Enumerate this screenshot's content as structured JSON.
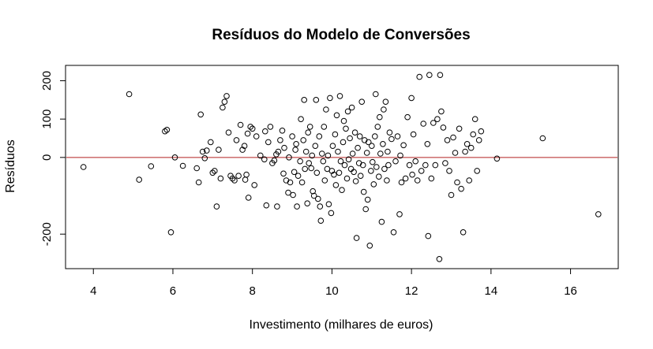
{
  "chart_data": {
    "type": "scatter",
    "title": "Resíduos do Modelo de Conversões",
    "xlabel": "Investimento (milhares de euros)",
    "ylabel": "Resíduos",
    "xlim": [
      3.3,
      17.2
    ],
    "ylim": [
      -290,
      240
    ],
    "xticks": [
      4,
      6,
      8,
      10,
      12,
      14,
      16
    ],
    "yticks": [
      -200,
      0,
      100,
      200
    ],
    "grid": false,
    "marker": "open-circle",
    "colors": {
      "points": "#000000",
      "reference_line": "#b22222"
    },
    "reference_line": {
      "orientation": "horizontal",
      "y": 0
    },
    "points": [
      [
        3.75,
        -25
      ],
      [
        4.9,
        165
      ],
      [
        5.15,
        -58
      ],
      [
        5.45,
        -23
      ],
      [
        5.8,
        68
      ],
      [
        5.85,
        72
      ],
      [
        5.95,
        -195
      ],
      [
        6.05,
        0
      ],
      [
        6.25,
        -22
      ],
      [
        6.6,
        -28
      ],
      [
        6.65,
        -65
      ],
      [
        6.7,
        112
      ],
      [
        6.75,
        15
      ],
      [
        6.8,
        -2
      ],
      [
        6.85,
        18
      ],
      [
        6.95,
        40
      ],
      [
        7.0,
        -40
      ],
      [
        7.05,
        -35
      ],
      [
        7.1,
        -128
      ],
      [
        7.15,
        20
      ],
      [
        7.2,
        -55
      ],
      [
        7.25,
        130
      ],
      [
        7.3,
        145
      ],
      [
        7.35,
        160
      ],
      [
        7.4,
        65
      ],
      [
        7.45,
        -48
      ],
      [
        7.5,
        -55
      ],
      [
        7.55,
        -60
      ],
      [
        7.6,
        45
      ],
      [
        7.65,
        -48
      ],
      [
        7.7,
        85
      ],
      [
        7.75,
        20
      ],
      [
        7.8,
        30
      ],
      [
        7.82,
        -58
      ],
      [
        7.85,
        -45
      ],
      [
        7.88,
        62
      ],
      [
        7.9,
        -105
      ],
      [
        7.95,
        80
      ],
      [
        8.0,
        75
      ],
      [
        8.05,
        -72
      ],
      [
        8.1,
        55
      ],
      [
        8.2,
        5
      ],
      [
        8.3,
        -5
      ],
      [
        8.32,
        68
      ],
      [
        8.35,
        -125
      ],
      [
        8.4,
        40
      ],
      [
        8.45,
        80
      ],
      [
        8.5,
        -15
      ],
      [
        8.55,
        -8
      ],
      [
        8.6,
        8
      ],
      [
        8.62,
        -128
      ],
      [
        8.65,
        15
      ],
      [
        8.7,
        45
      ],
      [
        8.75,
        70
      ],
      [
        8.78,
        -42
      ],
      [
        8.8,
        25
      ],
      [
        8.85,
        -60
      ],
      [
        8.9,
        -92
      ],
      [
        8.92,
        0
      ],
      [
        8.95,
        -65
      ],
      [
        9.0,
        55
      ],
      [
        9.02,
        -98
      ],
      [
        9.05,
        -38
      ],
      [
        9.08,
        20
      ],
      [
        9.1,
        35
      ],
      [
        9.12,
        -128
      ],
      [
        9.15,
        -48
      ],
      [
        9.2,
        -10
      ],
      [
        9.22,
        100
      ],
      [
        9.25,
        -65
      ],
      [
        9.28,
        45
      ],
      [
        9.3,
        150
      ],
      [
        9.32,
        -30
      ],
      [
        9.35,
        15
      ],
      [
        9.38,
        -120
      ],
      [
        9.4,
        65
      ],
      [
        9.42,
        -15
      ],
      [
        9.45,
        80
      ],
      [
        9.48,
        -28
      ],
      [
        9.5,
        5
      ],
      [
        9.52,
        -88
      ],
      [
        9.55,
        -100
      ],
      [
        9.58,
        30
      ],
      [
        9.6,
        150
      ],
      [
        9.62,
        -40
      ],
      [
        9.65,
        -108
      ],
      [
        9.68,
        55
      ],
      [
        9.7,
        -128
      ],
      [
        9.72,
        -165
      ],
      [
        9.75,
        10
      ],
      [
        9.78,
        -10
      ],
      [
        9.8,
        80
      ],
      [
        9.82,
        -60
      ],
      [
        9.85,
        125
      ],
      [
        9.88,
        -30
      ],
      [
        9.9,
        5
      ],
      [
        9.92,
        -122
      ],
      [
        9.95,
        155
      ],
      [
        9.98,
        -145
      ],
      [
        10.0,
        -35
      ],
      [
        10.02,
        30
      ],
      [
        10.05,
        -45
      ],
      [
        10.08,
        60
      ],
      [
        10.1,
        -72
      ],
      [
        10.12,
        110
      ],
      [
        10.15,
        15
      ],
      [
        10.18,
        -40
      ],
      [
        10.2,
        160
      ],
      [
        10.22,
        -10
      ],
      [
        10.25,
        -85
      ],
      [
        10.28,
        40
      ],
      [
        10.3,
        95
      ],
      [
        10.32,
        -20
      ],
      [
        10.35,
        75
      ],
      [
        10.38,
        -55
      ],
      [
        10.4,
        120
      ],
      [
        10.42,
        -5
      ],
      [
        10.45,
        50
      ],
      [
        10.48,
        -30
      ],
      [
        10.5,
        130
      ],
      [
        10.52,
        10
      ],
      [
        10.55,
        -38
      ],
      [
        10.58,
        65
      ],
      [
        10.6,
        -62
      ],
      [
        10.62,
        -210
      ],
      [
        10.65,
        25
      ],
      [
        10.68,
        -15
      ],
      [
        10.7,
        55
      ],
      [
        10.72,
        -48
      ],
      [
        10.75,
        145
      ],
      [
        10.78,
        -20
      ],
      [
        10.8,
        -90
      ],
      [
        10.82,
        45
      ],
      [
        10.85,
        -135
      ],
      [
        10.88,
        12
      ],
      [
        10.9,
        -110
      ],
      [
        10.92,
        40
      ],
      [
        10.95,
        -230
      ],
      [
        10.98,
        -35
      ],
      [
        11.0,
        30
      ],
      [
        11.02,
        -12
      ],
      [
        11.05,
        -70
      ],
      [
        11.08,
        55
      ],
      [
        11.1,
        165
      ],
      [
        11.12,
        -25
      ],
      [
        11.15,
        80
      ],
      [
        11.18,
        -50
      ],
      [
        11.2,
        105
      ],
      [
        11.22,
        10
      ],
      [
        11.25,
        -168
      ],
      [
        11.28,
        35
      ],
      [
        11.3,
        125
      ],
      [
        11.32,
        -30
      ],
      [
        11.35,
        145
      ],
      [
        11.38,
        -60
      ],
      [
        11.4,
        15
      ],
      [
        11.42,
        -20
      ],
      [
        11.45,
        65
      ],
      [
        11.5,
        48
      ],
      [
        11.55,
        -195
      ],
      [
        11.6,
        -10
      ],
      [
        11.65,
        55
      ],
      [
        11.7,
        -148
      ],
      [
        11.72,
        5
      ],
      [
        11.75,
        -65
      ],
      [
        11.8,
        32
      ],
      [
        11.85,
        -55
      ],
      [
        11.9,
        105
      ],
      [
        11.95,
        -20
      ],
      [
        12.0,
        155
      ],
      [
        12.02,
        -45
      ],
      [
        12.05,
        60
      ],
      [
        12.1,
        -10
      ],
      [
        12.15,
        -60
      ],
      [
        12.2,
        210
      ],
      [
        12.25,
        -35
      ],
      [
        12.3,
        88
      ],
      [
        12.35,
        -20
      ],
      [
        12.4,
        35
      ],
      [
        12.42,
        -205
      ],
      [
        12.45,
        215
      ],
      [
        12.5,
        -55
      ],
      [
        12.55,
        90
      ],
      [
        12.6,
        -20
      ],
      [
        12.65,
        100
      ],
      [
        12.7,
        -265
      ],
      [
        12.72,
        215
      ],
      [
        12.75,
        120
      ],
      [
        12.8,
        78
      ],
      [
        12.85,
        -15
      ],
      [
        12.9,
        45
      ],
      [
        12.95,
        -35
      ],
      [
        13.0,
        -98
      ],
      [
        13.05,
        52
      ],
      [
        13.1,
        12
      ],
      [
        13.15,
        -65
      ],
      [
        13.2,
        75
      ],
      [
        13.25,
        -82
      ],
      [
        13.3,
        -195
      ],
      [
        13.35,
        15
      ],
      [
        13.4,
        35
      ],
      [
        13.45,
        -60
      ],
      [
        13.5,
        25
      ],
      [
        13.55,
        60
      ],
      [
        13.6,
        100
      ],
      [
        13.65,
        -35
      ],
      [
        13.7,
        45
      ],
      [
        13.75,
        68
      ],
      [
        14.15,
        -3
      ],
      [
        15.3,
        50
      ],
      [
        16.7,
        -148
      ]
    ]
  }
}
